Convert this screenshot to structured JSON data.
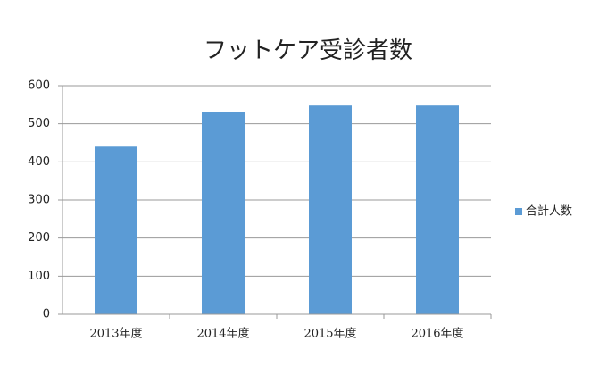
{
  "chart_data": {
    "type": "bar",
    "title": "フットケア受診者数",
    "categories": [
      "2013年度",
      "2014年度",
      "2015年度",
      "2016年度"
    ],
    "series": [
      {
        "name": "合計人数",
        "color": "#5b9bd5",
        "values": [
          440,
          530,
          548,
          548
        ]
      }
    ],
    "ylim": [
      0,
      600
    ],
    "yticks": [
      0,
      100,
      200,
      300,
      400,
      500,
      600
    ],
    "grid": true,
    "legend": "right"
  }
}
